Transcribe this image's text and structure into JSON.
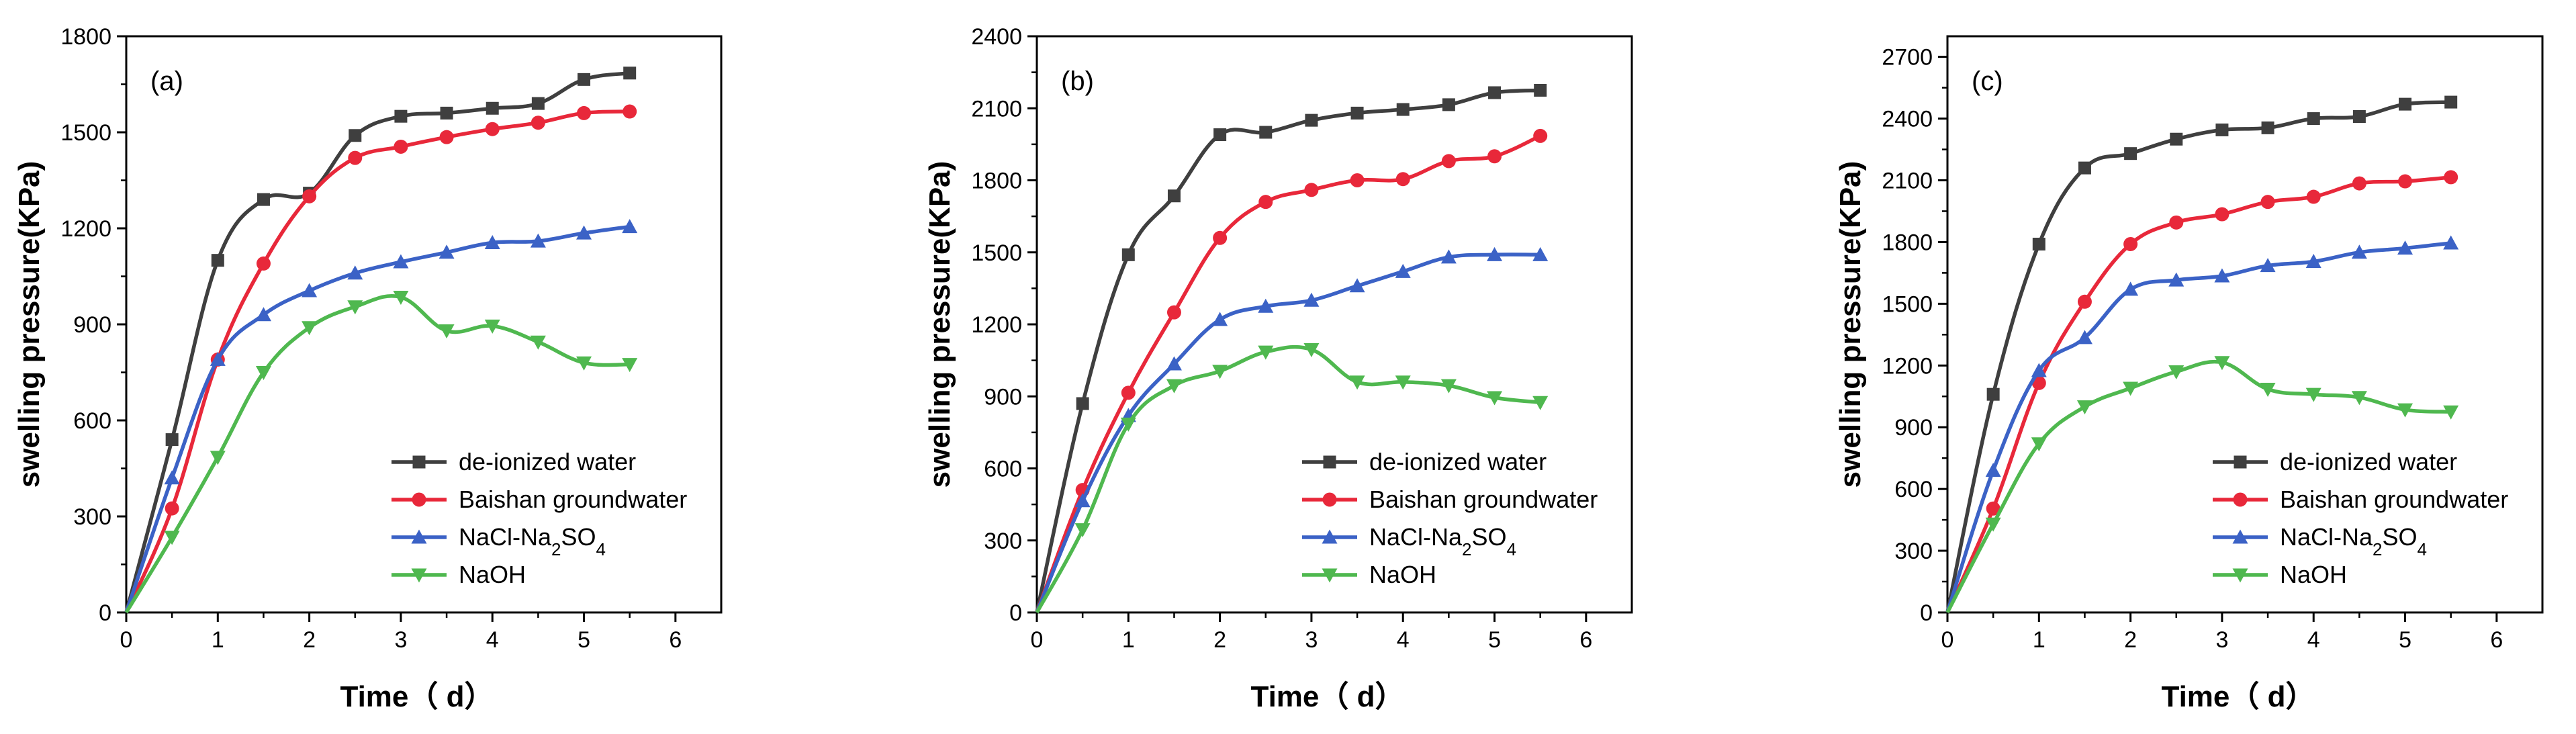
{
  "chart_data": [
    {
      "type": "line",
      "panel_label": "(a)",
      "xlabel": "Time（ d）",
      "ylabel": "swelling pressure(KPa)",
      "xlim": [
        0,
        6.5
      ],
      "ylim": [
        0,
        1800
      ],
      "xticks": [
        0,
        1,
        2,
        3,
        4,
        5,
        6
      ],
      "yticks": [
        0,
        300,
        600,
        900,
        1200,
        1500,
        1800
      ],
      "x": [
        0,
        0.5,
        1,
        1.5,
        2,
        2.5,
        3,
        3.5,
        4,
        4.5,
        5,
        5.5
      ],
      "series": [
        {
          "name": "de-ionized water",
          "marker": "square",
          "color": "#3f3f3f",
          "values": [
            0,
            540,
            1100,
            1290,
            1310,
            1490,
            1550,
            1560,
            1575,
            1590,
            1665,
            1685
          ]
        },
        {
          "name": "Baishan groundwater",
          "marker": "circle",
          "color": "#e8283a",
          "values": [
            0,
            325,
            790,
            1090,
            1300,
            1420,
            1455,
            1485,
            1510,
            1530,
            1560,
            1565
          ]
        },
        {
          "name": "NaCl-Na2SO4",
          "marker": "triangle-up",
          "color": "#3b62c6",
          "values": [
            0,
            420,
            790,
            930,
            1005,
            1060,
            1095,
            1125,
            1155,
            1160,
            1185,
            1205
          ]
        },
        {
          "name": "NaOH",
          "marker": "triangle-down",
          "color": "#4fb84f",
          "values": [
            0,
            235,
            485,
            750,
            890,
            955,
            985,
            880,
            895,
            845,
            780,
            775
          ]
        }
      ]
    },
    {
      "type": "line",
      "panel_label": "(b)",
      "xlabel": "Time（ d）",
      "ylabel": "swelling pressure(KPa)",
      "xlim": [
        0,
        6.5
      ],
      "ylim": [
        0,
        2400
      ],
      "xticks": [
        0,
        1,
        2,
        3,
        4,
        5,
        6
      ],
      "yticks": [
        0,
        300,
        600,
        900,
        1200,
        1500,
        1800,
        2100,
        2400
      ],
      "x": [
        0,
        0.5,
        1,
        1.5,
        2,
        2.5,
        3,
        3.5,
        4,
        4.5,
        5,
        5.5
      ],
      "series": [
        {
          "name": "de-ionized water",
          "marker": "square",
          "color": "#3f3f3f",
          "values": [
            0,
            870,
            1490,
            1735,
            1990,
            2000,
            2050,
            2080,
            2095,
            2115,
            2165,
            2175
          ]
        },
        {
          "name": "Baishan groundwater",
          "marker": "circle",
          "color": "#e8283a",
          "values": [
            0,
            510,
            915,
            1250,
            1560,
            1710,
            1760,
            1800,
            1805,
            1880,
            1900,
            1985
          ]
        },
        {
          "name": "NaCl-Na2SO4",
          "marker": "triangle-up",
          "color": "#3b62c6",
          "values": [
            0,
            465,
            820,
            1035,
            1220,
            1275,
            1300,
            1360,
            1420,
            1480,
            1490,
            1490
          ]
        },
        {
          "name": "NaOH",
          "marker": "triangle-down",
          "color": "#4fb84f",
          "values": [
            0,
            345,
            785,
            945,
            1005,
            1085,
            1095,
            960,
            960,
            945,
            895,
            875
          ]
        }
      ]
    },
    {
      "type": "line",
      "panel_label": "(c)",
      "xlabel": "Time（ d）",
      "ylabel": "swelling pressure(KPa)",
      "xlim": [
        0,
        6.5
      ],
      "ylim": [
        0,
        2800
      ],
      "xticks": [
        0,
        1,
        2,
        3,
        4,
        5,
        6
      ],
      "yticks": [
        0,
        300,
        600,
        900,
        1200,
        1500,
        1800,
        2100,
        2400,
        2700
      ],
      "x": [
        0,
        0.5,
        1,
        1.5,
        2,
        2.5,
        3,
        3.5,
        4,
        4.5,
        5,
        5.5
      ],
      "series": [
        {
          "name": "de-ionized water",
          "marker": "square",
          "color": "#3f3f3f",
          "values": [
            0,
            1060,
            1790,
            2160,
            2230,
            2300,
            2345,
            2355,
            2400,
            2410,
            2470,
            2480
          ]
        },
        {
          "name": "Baishan groundwater",
          "marker": "circle",
          "color": "#e8283a",
          "values": [
            0,
            505,
            1115,
            1510,
            1790,
            1895,
            1935,
            1995,
            2020,
            2085,
            2095,
            2115
          ]
        },
        {
          "name": "NaCl-Na2SO4",
          "marker": "triangle-up",
          "color": "#3b62c6",
          "values": [
            0,
            690,
            1175,
            1335,
            1570,
            1615,
            1635,
            1685,
            1705,
            1750,
            1770,
            1795
          ]
        },
        {
          "name": "NaOH",
          "marker": "triangle-down",
          "color": "#4fb84f",
          "values": [
            0,
            430,
            820,
            1000,
            1090,
            1170,
            1215,
            1085,
            1060,
            1045,
            985,
            975
          ]
        }
      ]
    }
  ]
}
